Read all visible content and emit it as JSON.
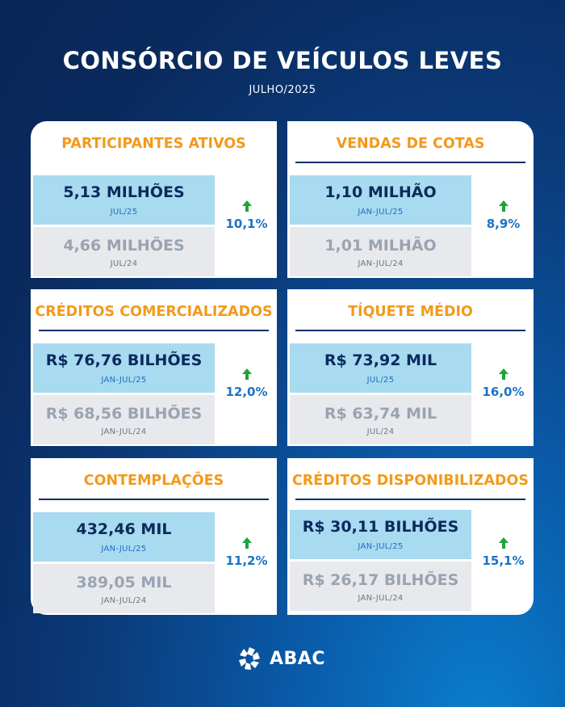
{
  "header": {
    "title": "CONSÓRCIO DE VEÍCULOS LEVES",
    "subtitle": "JULHO/2025"
  },
  "cards": [
    {
      "title": "PARTICIPANTES ATIVOS",
      "current_value": "5,13 MILHÕES",
      "current_period": "JUL/25",
      "previous_value": "4,66 MILHÕES",
      "previous_period": "JUL/24",
      "growth": "10,1%"
    },
    {
      "title": "VENDAS DE COTAS",
      "current_value": "1,10 MILHÃO",
      "current_period": "JAN-JUL/25",
      "previous_value": "1,01 MILHÃO",
      "previous_period": "JAN-JUL/24",
      "growth": "8,9%"
    },
    {
      "title": "CRÉDITOS COMERCIALIZADOS",
      "current_value": "R$ 76,76 BILHÕES",
      "current_period": "JAN-JUL/25",
      "previous_value": "R$ 68,56 BILHÕES",
      "previous_period": "JAN-JUL/24",
      "growth": "12,0%"
    },
    {
      "title": "TÍQUETE MÉDIO",
      "current_value": "R$ 73,92 MIL",
      "current_period": "JUL/25",
      "previous_value": "R$ 63,74 MIL",
      "previous_period": "JUL/24",
      "growth": "16,0%"
    },
    {
      "title": "CONTEMPLAÇÕES",
      "current_value": "432,46 MIL",
      "current_period": "JAN-JUL/25",
      "previous_value": "389,05 MIL",
      "previous_period": "JAN-JUL/24",
      "growth": "11,2%"
    },
    {
      "title": "CRÉDITOS DISPONIBILIZADOS",
      "current_value": "R$ 30,11 BILHÕES",
      "current_period": "JAN-JUL/25",
      "previous_value": "R$ 26,17 BILHÕES",
      "previous_period": "JAN-JUL/24",
      "growth": "15,1%"
    }
  ],
  "footer": {
    "logo_text": "ABAC",
    "logo_icon": "abac-logo-icon"
  },
  "colors": {
    "card_title": "#f29a1b",
    "current_box": "#a8daf0",
    "previous_box": "#e8e9ed",
    "growth_arrow": "#1fa43a",
    "growth_text": "#1a73c7"
  }
}
